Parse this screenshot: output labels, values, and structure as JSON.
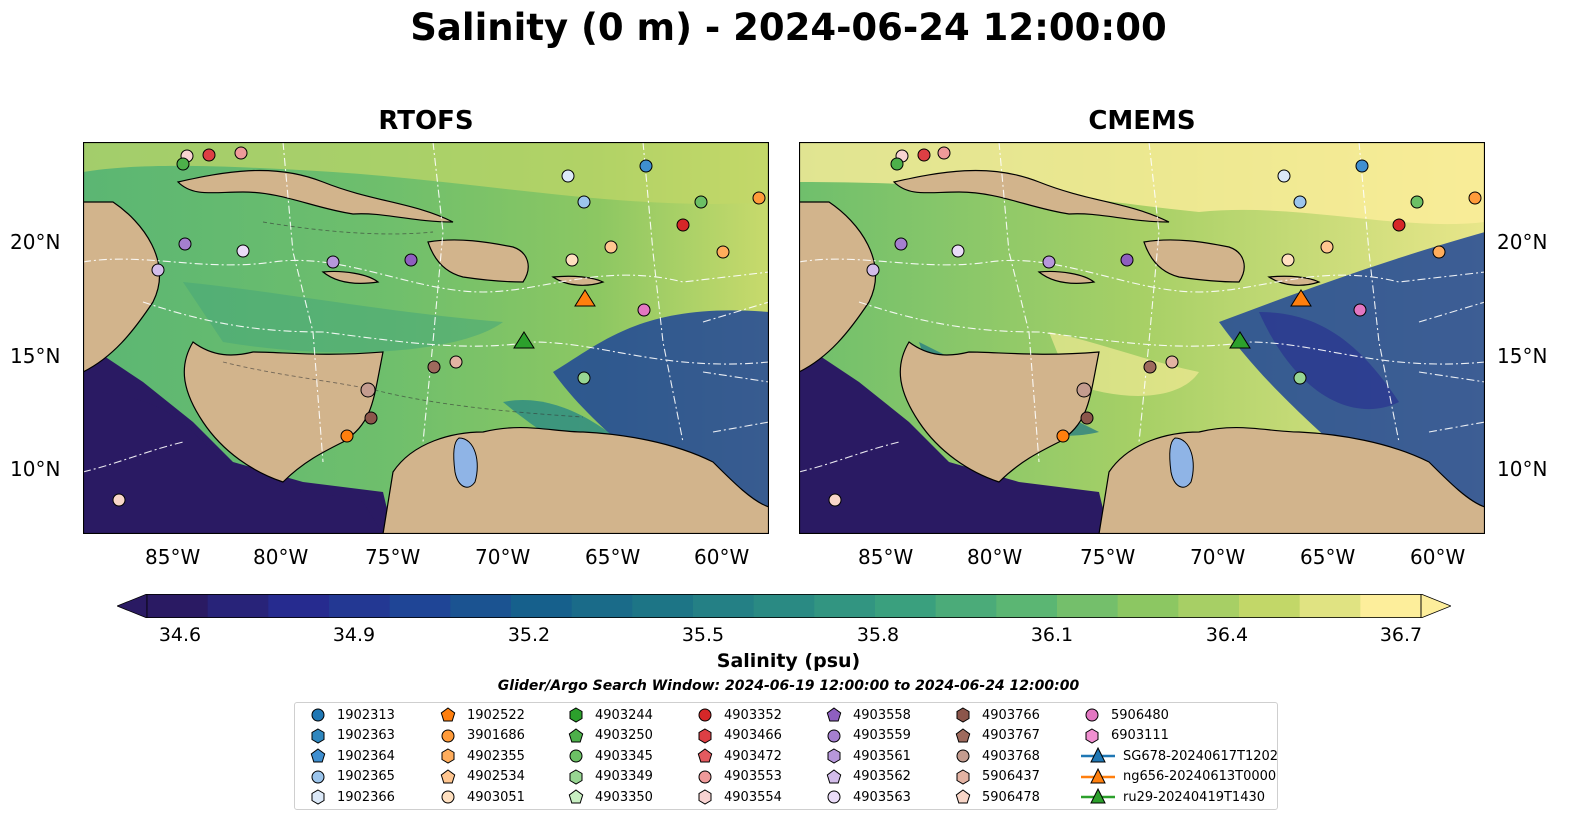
{
  "title": "Salinity (0 m) - 2024-06-24 12:00:00",
  "panels": [
    {
      "title": "RTOFS",
      "lon_ticks": [
        "85°W",
        "80°W",
        "75°W",
        "70°W",
        "65°W",
        "60°W"
      ],
      "lat_ticks": [
        "20°N",
        "15°N",
        "10°N"
      ]
    },
    {
      "title": "CMEMS",
      "lon_ticks": [
        "85°W",
        "80°W",
        "75°W",
        "70°W",
        "65°W",
        "60°W"
      ],
      "lat_ticks": [
        "20°N",
        "15°N",
        "10°N"
      ]
    }
  ],
  "map_extent": {
    "lon": [
      -89,
      -58.3
    ],
    "lat": [
      7,
      24.3
    ]
  },
  "colorbar": {
    "label": "Salinity (psu)",
    "ticks": [
      "34.6",
      "34.9",
      "35.2",
      "35.5",
      "35.8",
      "36.1",
      "36.4",
      "36.7"
    ],
    "range": [
      34.6,
      36.7
    ],
    "colormap": "haline",
    "colors": [
      "#2a1a63",
      "#262b8f",
      "#1f4596",
      "#16608c",
      "#1d7586",
      "#2a8a83",
      "#3aa07e",
      "#5bb673",
      "#8cc762",
      "#c2d768",
      "#fdee9b"
    ]
  },
  "search_window": "Glider/Argo Search Window: 2024-06-19 12:00:00 to 2024-06-24 12:00:00",
  "legend": [
    {
      "label": "1902313",
      "marker": "circle",
      "color": "#1f77b4"
    },
    {
      "label": "1902363",
      "marker": "hexagon",
      "color": "#2f87bf"
    },
    {
      "label": "1902364",
      "marker": "pentagon",
      "color": "#3f8fd0"
    },
    {
      "label": "1902365",
      "marker": "circle",
      "color": "#9cc5ec"
    },
    {
      "label": "1902366",
      "marker": "hexagon",
      "color": "#dce9f8"
    },
    {
      "label": "1902522",
      "marker": "pentagon",
      "color": "#ff7f0e"
    },
    {
      "label": "3901686",
      "marker": "circle",
      "color": "#ff9b3a"
    },
    {
      "label": "4902355",
      "marker": "hexagon",
      "color": "#ffad5c"
    },
    {
      "label": "4902534",
      "marker": "pentagon",
      "color": "#ffc690"
    },
    {
      "label": "4903051",
      "marker": "circle",
      "color": "#ffe0c0"
    },
    {
      "label": "4903244",
      "marker": "hexagon",
      "color": "#2ca02c"
    },
    {
      "label": "4903250",
      "marker": "pentagon",
      "color": "#4db04a"
    },
    {
      "label": "4903345",
      "marker": "circle",
      "color": "#6cc065"
    },
    {
      "label": "4903349",
      "marker": "hexagon",
      "color": "#98d692"
    },
    {
      "label": "4903350",
      "marker": "pentagon",
      "color": "#c8efc2"
    },
    {
      "label": "4903352",
      "marker": "circle",
      "color": "#d62728"
    },
    {
      "label": "4903466",
      "marker": "hexagon",
      "color": "#dd3f44"
    },
    {
      "label": "4903472",
      "marker": "pentagon",
      "color": "#e35a5f"
    },
    {
      "label": "4903553",
      "marker": "circle",
      "color": "#ef9a9a"
    },
    {
      "label": "4903554",
      "marker": "hexagon",
      "color": "#f8d3d2"
    },
    {
      "label": "4903558",
      "marker": "pentagon",
      "color": "#8e5fbf"
    },
    {
      "label": "4903559",
      "marker": "circle",
      "color": "#a57fcf"
    },
    {
      "label": "4903561",
      "marker": "hexagon",
      "color": "#b797db"
    },
    {
      "label": "4903562",
      "marker": "pentagon",
      "color": "#d3bdea"
    },
    {
      "label": "4903563",
      "marker": "circle",
      "color": "#eadcf8"
    },
    {
      "label": "4903766",
      "marker": "hexagon",
      "color": "#8c564b"
    },
    {
      "label": "4903767",
      "marker": "pentagon",
      "color": "#9e6a5d"
    },
    {
      "label": "4903768",
      "marker": "circle",
      "color": "#c49c8f"
    },
    {
      "label": "5906437",
      "marker": "hexagon",
      "color": "#e3b3a3"
    },
    {
      "label": "5906478",
      "marker": "pentagon",
      "color": "#f8d6c8"
    },
    {
      "label": "5906480",
      "marker": "circle",
      "color": "#e377c2"
    },
    {
      "label": "6903111",
      "marker": "hexagon",
      "color": "#f08fd0"
    },
    {
      "label": "SG678-20240617T1202",
      "marker": "triangle-line",
      "color": "#1f77b4"
    },
    {
      "label": "ng656-20240613T0000",
      "marker": "triangle-line",
      "color": "#ff7f0e"
    },
    {
      "label": "ru29-20240419T1430",
      "marker": "triangle-line",
      "color": "#2ca02c"
    }
  ],
  "land_color": "#d2b48c",
  "lake_color": "#8fb4e6"
}
